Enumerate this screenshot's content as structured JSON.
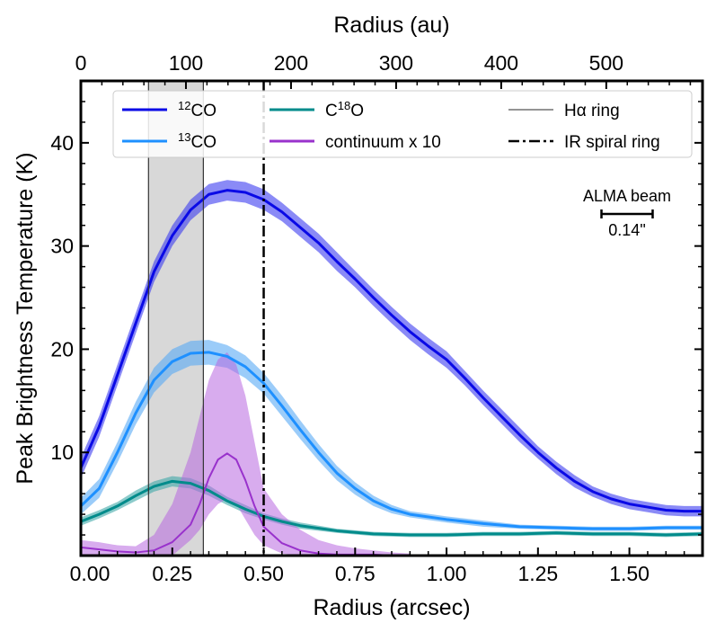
{
  "chart_data": {
    "type": "line",
    "xlabel": "Radius (arcsec)",
    "x2label": "Radius (au)",
    "ylabel": "Peak Brightness Temperature (K)",
    "xlim": [
      0,
      1.7
    ],
    "ylim": [
      0,
      46
    ],
    "x2lim": [
      0,
      591.6
    ],
    "xticks": [
      0.0,
      0.25,
      0.5,
      0.75,
      1.0,
      1.25,
      1.5
    ],
    "xtick_labels": [
      "0.00",
      "0.25",
      "0.50",
      "0.75",
      "1.00",
      "1.25",
      "1.50"
    ],
    "yticks": [
      10,
      20,
      30,
      40
    ],
    "ytick_labels": [
      "10",
      "20",
      "30",
      "40"
    ],
    "x2ticks": [
      0,
      100,
      200,
      300,
      400,
      500
    ],
    "x2tick_labels": [
      "0",
      "100",
      "200",
      "300",
      "400",
      "500"
    ],
    "shaded_region": {
      "x_start": 0.185,
      "x_end": 0.335,
      "color": "#d8d8d8",
      "label": "Hα ring"
    },
    "vertical_line": {
      "x": 0.5,
      "style": "dash-dot",
      "label": "IR spiral ring"
    },
    "beam": {
      "label": "ALMA beam",
      "size_label": "0.14\"",
      "size_arcsec": 0.14
    },
    "legend": [
      {
        "sup": "12",
        "label": "CO",
        "color": "#0a0ae6",
        "kind": "line"
      },
      {
        "sup": "13",
        "label": "CO",
        "color": "#1e90ff",
        "kind": "line"
      },
      {
        "pre": "C",
        "sup": "18",
        "label": "O",
        "color": "#008b8b",
        "kind": "line"
      },
      {
        "label": "continuum x 10",
        "color": "#9932cc",
        "kind": "line"
      },
      {
        "label": "Hα ring",
        "color": "#555555",
        "kind": "thin"
      },
      {
        "label": "IR spiral ring",
        "color": "#000000",
        "kind": "dashdot"
      }
    ],
    "series": [
      {
        "name": "12CO",
        "color": "#0a0ae6",
        "band_color": "#3c3cf0",
        "lw": 3,
        "x": [
          0.0,
          0.05,
          0.1,
          0.15,
          0.2,
          0.25,
          0.3,
          0.35,
          0.4,
          0.45,
          0.5,
          0.55,
          0.6,
          0.65,
          0.7,
          0.75,
          0.8,
          0.85,
          0.9,
          0.95,
          1.0,
          1.05,
          1.1,
          1.15,
          1.2,
          1.25,
          1.3,
          1.35,
          1.4,
          1.45,
          1.5,
          1.55,
          1.6,
          1.65,
          1.7
        ],
        "y": [
          8.5,
          12.5,
          17.5,
          22.5,
          27.5,
          31.0,
          33.5,
          35.0,
          35.4,
          35.2,
          34.5,
          33.3,
          31.8,
          30.3,
          28.5,
          26.8,
          25.0,
          23.3,
          21.7,
          20.3,
          19.0,
          17.2,
          15.3,
          13.5,
          11.7,
          10.0,
          8.5,
          7.2,
          6.2,
          5.5,
          5.0,
          4.7,
          4.4,
          4.3,
          4.3
        ],
        "err": [
          1.0,
          1.0,
          1.0,
          1.0,
          1.0,
          1.0,
          1.0,
          1.0,
          1.0,
          1.0,
          1.0,
          0.9,
          0.9,
          0.9,
          0.9,
          0.8,
          0.8,
          0.8,
          0.8,
          0.8,
          0.8,
          0.7,
          0.7,
          0.7,
          0.7,
          0.6,
          0.6,
          0.6,
          0.5,
          0.5,
          0.5,
          0.5,
          0.5,
          0.5,
          0.5
        ]
      },
      {
        "name": "13CO",
        "color": "#1e90ff",
        "band_color": "#58aaf5",
        "lw": 3,
        "x": [
          0.0,
          0.05,
          0.1,
          0.15,
          0.2,
          0.25,
          0.3,
          0.35,
          0.4,
          0.45,
          0.5,
          0.55,
          0.6,
          0.65,
          0.7,
          0.75,
          0.8,
          0.85,
          0.9,
          1.0,
          1.1,
          1.2,
          1.3,
          1.4,
          1.5,
          1.6,
          1.7
        ],
        "y": [
          4.8,
          6.5,
          10.0,
          13.8,
          17.0,
          18.8,
          19.6,
          19.7,
          19.3,
          18.3,
          16.7,
          14.5,
          12.2,
          10.0,
          8.0,
          6.5,
          5.3,
          4.5,
          4.0,
          3.5,
          3.1,
          2.8,
          2.7,
          2.6,
          2.6,
          2.7,
          2.7
        ],
        "err": [
          0.8,
          0.9,
          1.0,
          1.1,
          1.2,
          1.2,
          1.2,
          1.2,
          1.1,
          1.1,
          1.0,
          1.0,
          0.9,
          0.8,
          0.7,
          0.6,
          0.5,
          0.4,
          0.3,
          0.3,
          0.3,
          0.2,
          0.2,
          0.2,
          0.2,
          0.2,
          0.2
        ]
      },
      {
        "name": "C18O",
        "color": "#008b8b",
        "band_color": "#40a8a8",
        "lw": 3,
        "x": [
          0.0,
          0.05,
          0.1,
          0.15,
          0.2,
          0.25,
          0.3,
          0.35,
          0.4,
          0.45,
          0.5,
          0.55,
          0.6,
          0.7,
          0.8,
          0.9,
          1.0,
          1.1,
          1.2,
          1.3,
          1.4,
          1.5,
          1.6,
          1.7
        ],
        "y": [
          3.3,
          4.0,
          4.8,
          5.8,
          6.7,
          7.2,
          7.0,
          6.3,
          5.3,
          4.5,
          3.8,
          3.3,
          2.9,
          2.4,
          2.1,
          2.0,
          2.0,
          2.1,
          2.1,
          2.2,
          2.1,
          2.1,
          2.0,
          2.1
        ],
        "err": [
          0.4,
          0.4,
          0.4,
          0.5,
          0.5,
          0.5,
          0.5,
          0.5,
          0.4,
          0.4,
          0.3,
          0.3,
          0.3,
          0.2,
          0.2,
          0.2,
          0.2,
          0.2,
          0.2,
          0.2,
          0.2,
          0.2,
          0.2,
          0.2
        ]
      },
      {
        "name": "continuum x 10",
        "color": "#9932cc",
        "band_color": "#b868e0",
        "lw": 2,
        "x": [
          0.0,
          0.05,
          0.1,
          0.15,
          0.2,
          0.25,
          0.3,
          0.325,
          0.35,
          0.375,
          0.4,
          0.425,
          0.45,
          0.475,
          0.5,
          0.55,
          0.6,
          0.65,
          0.7,
          0.75,
          0.8,
          0.85,
          0.9
        ],
        "y": [
          0.8,
          0.6,
          0.4,
          0.3,
          0.5,
          1.3,
          3.0,
          5.0,
          7.5,
          9.3,
          9.9,
          9.3,
          7.3,
          4.8,
          2.8,
          1.2,
          0.5,
          0.2,
          0.1,
          0.1,
          0.1,
          0.0,
          0.0
        ],
        "lo": [
          0.0,
          0.0,
          0.0,
          0.0,
          0.0,
          0.0,
          1.5,
          2.5,
          4.0,
          5.0,
          5.5,
          5.0,
          3.5,
          2.0,
          1.0,
          0.2,
          0.0,
          0.0,
          0.0,
          0.0,
          0.0,
          0.0,
          0.0
        ],
        "hi": [
          1.5,
          1.3,
          1.0,
          0.9,
          2.0,
          5.0,
          10.0,
          13.5,
          17.0,
          19.0,
          19.7,
          18.5,
          15.5,
          11.0,
          6.5,
          4.0,
          2.5,
          1.5,
          1.0,
          0.7,
          0.5,
          0.3,
          0.2
        ]
      }
    ]
  }
}
